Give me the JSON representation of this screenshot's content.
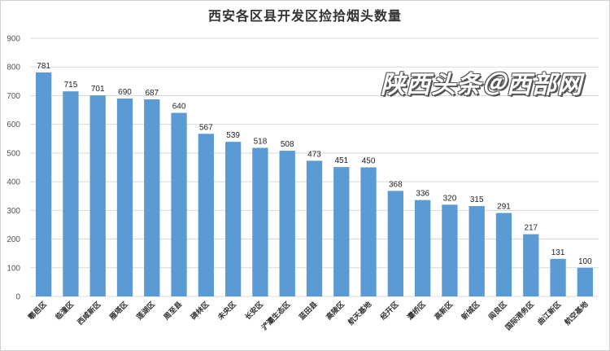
{
  "chart_data": {
    "type": "bar",
    "title": "西安各区县开发区捡拾烟头数量",
    "categories": [
      "鄠邑区",
      "临潼区",
      "西咸新区",
      "雁塔区",
      "莲湖区",
      "周至县",
      "碑林区",
      "未央区",
      "长安区",
      "浐灞生态区",
      "蓝田县",
      "高陵区",
      "航天基地",
      "经开区",
      "灞桥区",
      "高新区",
      "新城区",
      "阎良区",
      "国际港务区",
      "曲江新区",
      "航空基地"
    ],
    "values": [
      781,
      715,
      701,
      690,
      687,
      640,
      567,
      539,
      518,
      508,
      473,
      451,
      450,
      368,
      336,
      320,
      315,
      291,
      217,
      131,
      100
    ],
    "ylim": [
      0,
      900
    ],
    "yticks": [
      0,
      100,
      200,
      300,
      400,
      500,
      600,
      700,
      800,
      900
    ],
    "grid": true,
    "bar_color": "#5B9BD5",
    "grid_color": "#d9d9d9"
  },
  "watermark": "陕西头条＠西部网"
}
